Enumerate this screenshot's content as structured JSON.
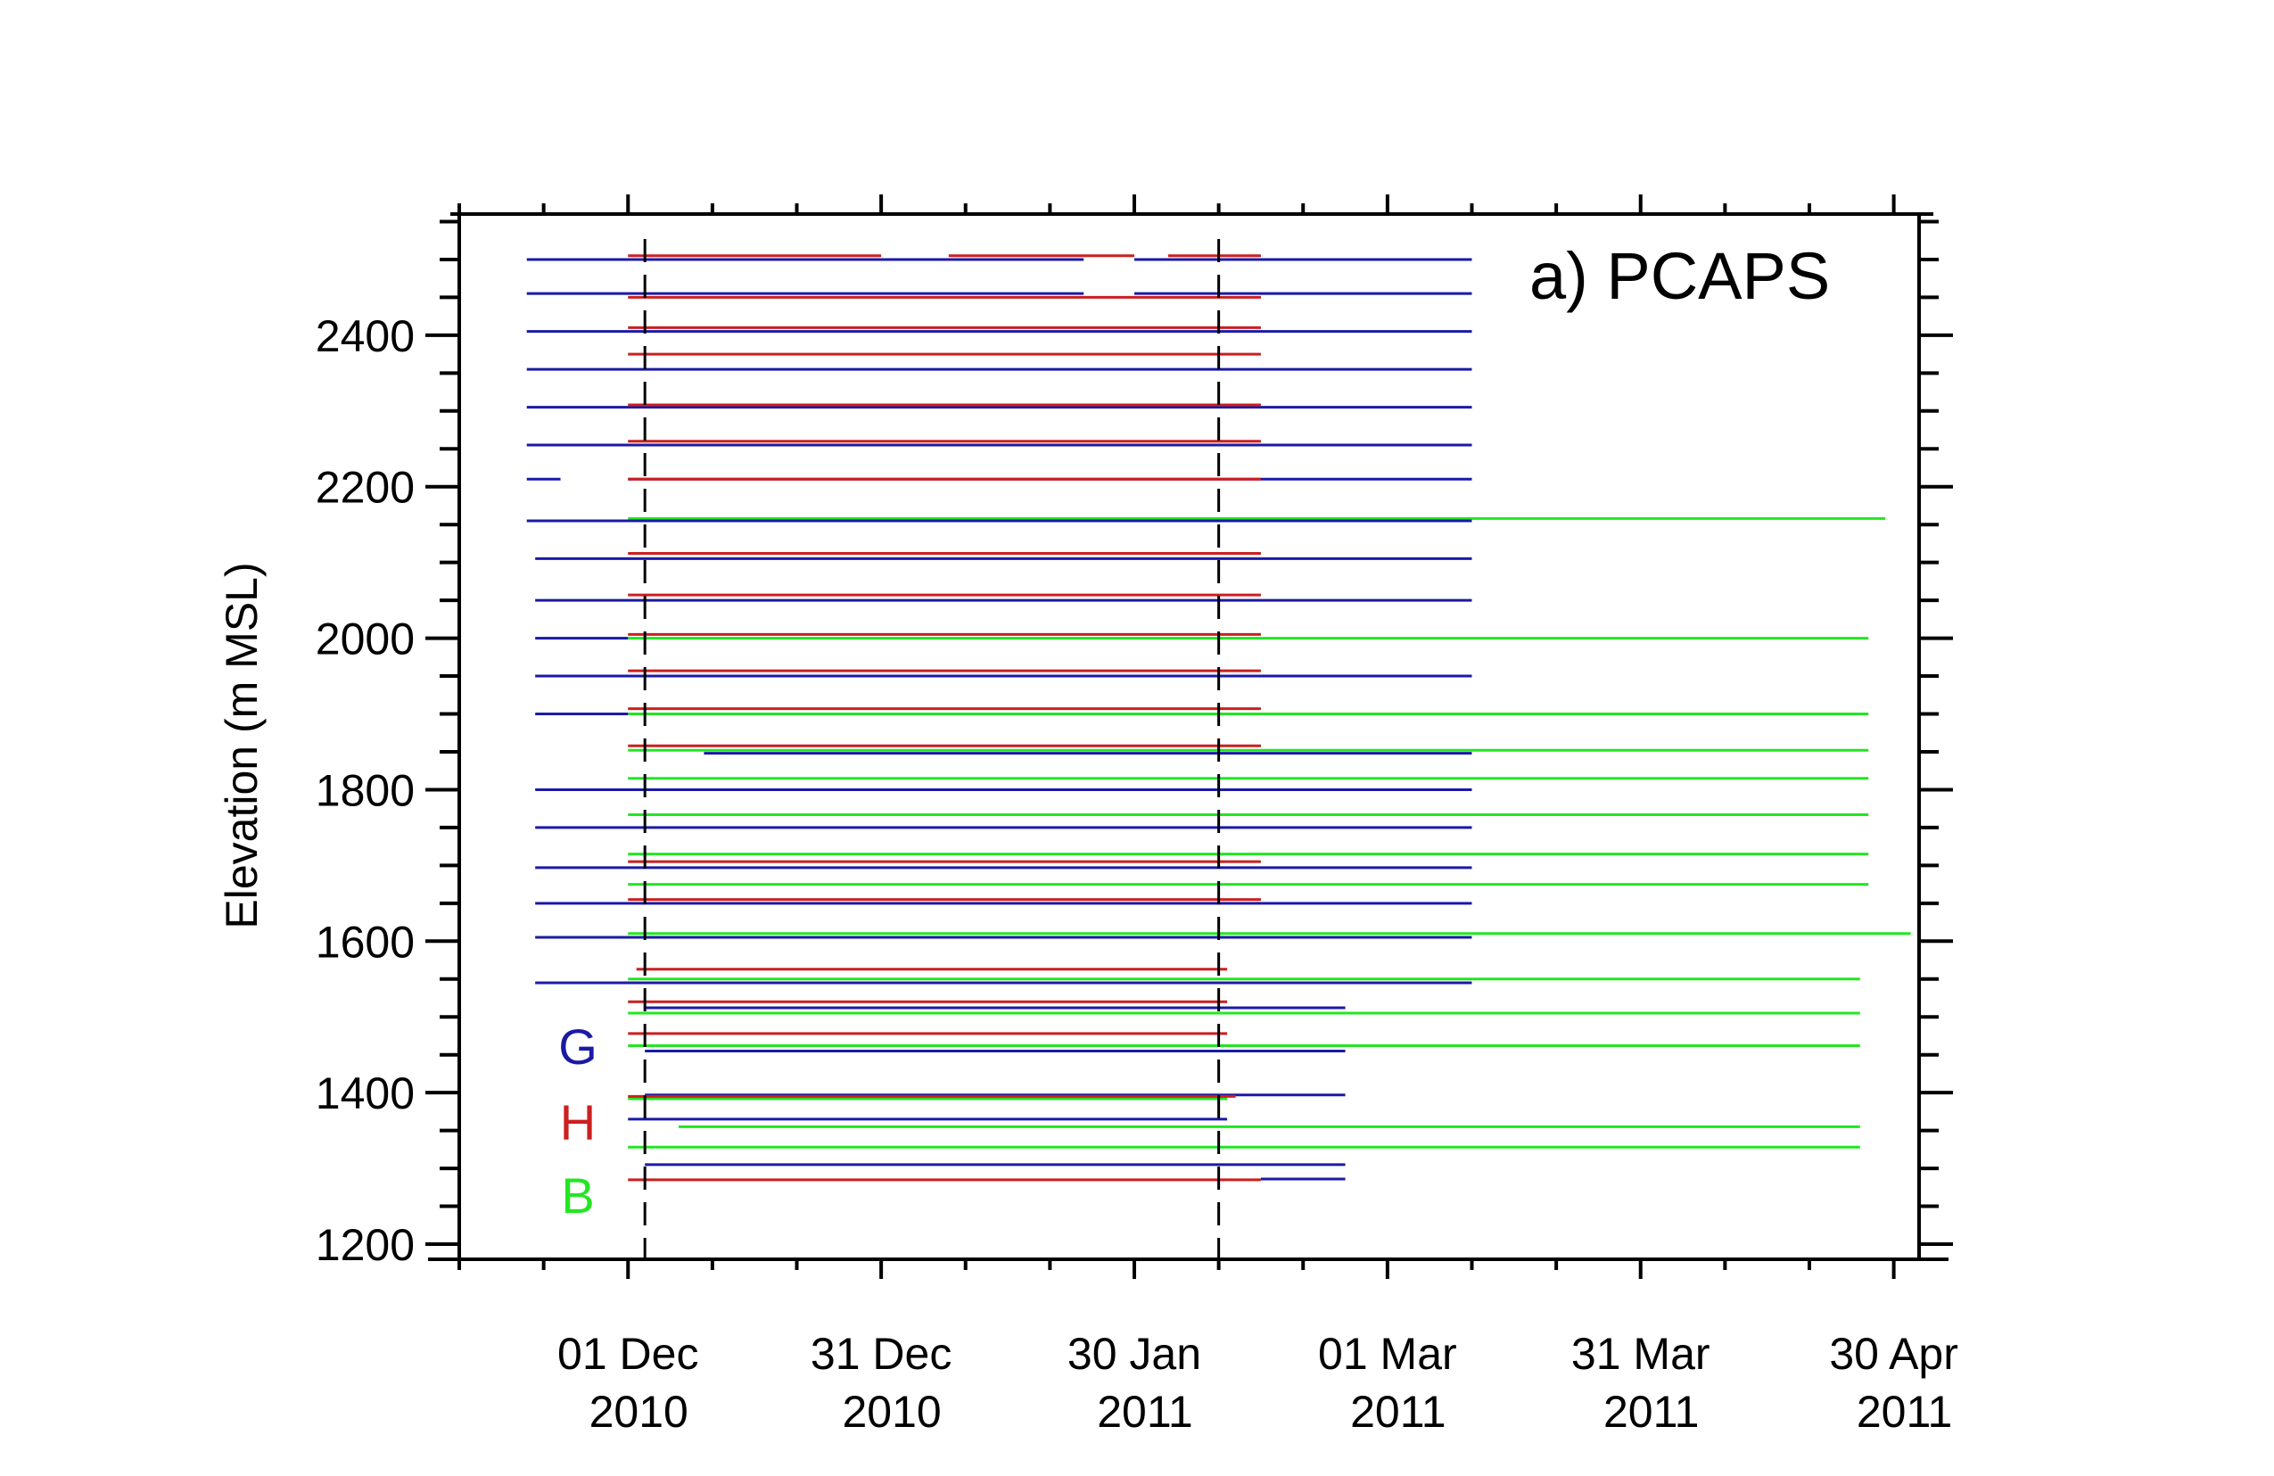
{
  "chart_data": {
    "type": "timeline",
    "title": "a) PCAPS",
    "xlabel": "",
    "ylabel": "Elevation (m MSL)",
    "ylim": [
      1180,
      2560
    ],
    "yticks": [
      1200,
      1400,
      1600,
      1800,
      2000,
      2200,
      2400
    ],
    "xlim": [
      "2010-11-11",
      "2011-05-03"
    ],
    "xticks": [
      {
        "date": "2010-12-01",
        "label1": "01 Dec",
        "label2": "2010"
      },
      {
        "date": "2010-12-31",
        "label1": "31 Dec",
        "label2": "2010"
      },
      {
        "date": "2011-01-30",
        "label1": "30 Jan",
        "label2": "2011"
      },
      {
        "date": "2011-03-01",
        "label1": "01 Mar",
        "label2": "2011"
      },
      {
        "date": "2011-03-31",
        "label1": "31 Mar",
        "label2": "2011"
      },
      {
        "date": "2011-04-30",
        "label1": "30 Apr",
        "label2": "2011"
      }
    ],
    "event_lines": [
      "2010-12-03",
      "2011-02-09"
    ],
    "colors": {
      "G": "#1a1aa6",
      "H": "#cc1f1f",
      "B": "#22e622"
    },
    "legend": [
      {
        "key": "G",
        "label": "G",
        "color": "#1a1aa6"
      },
      {
        "key": "H",
        "label": "H",
        "color": "#cc1f1f"
      },
      {
        "key": "B",
        "label": "B",
        "color": "#22e622"
      }
    ],
    "series": [
      {
        "name": "G",
        "segments": [
          {
            "y": 2500,
            "start": "2010-11-19",
            "end": "2011-01-24"
          },
          {
            "y": 2500,
            "start": "2011-01-30",
            "end": "2011-03-11"
          },
          {
            "y": 2455,
            "start": "2010-11-19",
            "end": "2011-01-24"
          },
          {
            "y": 2455,
            "start": "2011-01-30",
            "end": "2011-03-11"
          },
          {
            "y": 2405,
            "start": "2010-11-19",
            "end": "2011-03-11"
          },
          {
            "y": 2355,
            "start": "2010-11-19",
            "end": "2011-03-11"
          },
          {
            "y": 2305,
            "start": "2010-11-19",
            "end": "2011-03-11"
          },
          {
            "y": 2255,
            "start": "2010-11-19",
            "end": "2011-03-11"
          },
          {
            "y": 2210,
            "start": "2010-11-19",
            "end": "2010-11-23"
          },
          {
            "y": 2210,
            "start": "2010-12-01",
            "end": "2011-03-11"
          },
          {
            "y": 2155,
            "start": "2010-11-19",
            "end": "2011-03-11"
          },
          {
            "y": 2105,
            "start": "2010-11-20",
            "end": "2011-03-11"
          },
          {
            "y": 2050,
            "start": "2010-11-20",
            "end": "2011-03-11"
          },
          {
            "y": 2000,
            "start": "2010-11-20",
            "end": "2010-12-01"
          },
          {
            "y": 1950,
            "start": "2010-11-20",
            "end": "2011-03-11"
          },
          {
            "y": 1900,
            "start": "2010-11-20",
            "end": "2010-12-01"
          },
          {
            "y": 1848,
            "start": "2010-12-10",
            "end": "2011-03-11"
          },
          {
            "y": 1800,
            "start": "2010-11-20",
            "end": "2011-03-11"
          },
          {
            "y": 1750,
            "start": "2010-11-20",
            "end": "2011-03-11"
          },
          {
            "y": 1697,
            "start": "2010-11-20",
            "end": "2011-03-11"
          },
          {
            "y": 1650,
            "start": "2010-11-20",
            "end": "2011-03-11"
          },
          {
            "y": 1605,
            "start": "2010-11-20",
            "end": "2011-03-11"
          },
          {
            "y": 1545,
            "start": "2010-11-20",
            "end": "2011-03-11"
          },
          {
            "y": 1512,
            "start": "2010-12-03",
            "end": "2011-02-24"
          },
          {
            "y": 1455,
            "start": "2010-12-03",
            "end": "2011-02-24"
          },
          {
            "y": 1397,
            "start": "2010-12-03",
            "end": "2011-02-24"
          },
          {
            "y": 1365,
            "start": "2010-12-01",
            "end": "2011-02-10"
          },
          {
            "y": 1305,
            "start": "2010-12-03",
            "end": "2011-02-24"
          },
          {
            "y": 1286,
            "start": "2011-02-14",
            "end": "2011-02-24"
          }
        ]
      },
      {
        "name": "H",
        "segments": [
          {
            "y": 2505,
            "start": "2010-12-01",
            "end": "2010-12-31"
          },
          {
            "y": 2505,
            "start": "2011-01-08",
            "end": "2011-01-30"
          },
          {
            "y": 2505,
            "start": "2011-02-03",
            "end": "2011-02-14"
          },
          {
            "y": 2450,
            "start": "2010-12-01",
            "end": "2011-02-14"
          },
          {
            "y": 2410,
            "start": "2010-12-01",
            "end": "2011-02-14"
          },
          {
            "y": 2375,
            "start": "2010-12-01",
            "end": "2011-02-14"
          },
          {
            "y": 2308,
            "start": "2010-12-01",
            "end": "2011-02-14"
          },
          {
            "y": 2260,
            "start": "2010-12-01",
            "end": "2011-02-14"
          },
          {
            "y": 2210,
            "start": "2010-12-01",
            "end": "2011-02-14"
          },
          {
            "y": 2112,
            "start": "2010-12-01",
            "end": "2011-02-14"
          },
          {
            "y": 2057,
            "start": "2010-12-01",
            "end": "2011-02-14"
          },
          {
            "y": 2005,
            "start": "2010-12-01",
            "end": "2011-02-14"
          },
          {
            "y": 1957,
            "start": "2010-12-01",
            "end": "2011-02-14"
          },
          {
            "y": 1907,
            "start": "2010-12-01",
            "end": "2011-02-14"
          },
          {
            "y": 1858,
            "start": "2010-12-01",
            "end": "2011-02-14"
          },
          {
            "y": 1705,
            "start": "2010-12-01",
            "end": "2011-02-14"
          },
          {
            "y": 1655,
            "start": "2010-12-01",
            "end": "2011-02-14"
          },
          {
            "y": 1563,
            "start": "2010-12-02",
            "end": "2011-02-10"
          },
          {
            "y": 1520,
            "start": "2010-12-01",
            "end": "2011-02-10"
          },
          {
            "y": 1478,
            "start": "2010-12-01",
            "end": "2011-02-10"
          },
          {
            "y": 1395,
            "start": "2010-12-01",
            "end": "2011-02-11"
          },
          {
            "y": 1285,
            "start": "2010-12-01",
            "end": "2011-02-14"
          }
        ]
      },
      {
        "name": "B",
        "segments": [
          {
            "y": 2158,
            "start": "2010-12-01",
            "end": "2011-04-29"
          },
          {
            "y": 2000,
            "start": "2010-12-01",
            "end": "2011-04-27"
          },
          {
            "y": 1900,
            "start": "2010-12-01",
            "end": "2011-04-27"
          },
          {
            "y": 1852,
            "start": "2010-12-01",
            "end": "2011-04-27"
          },
          {
            "y": 1815,
            "start": "2010-12-01",
            "end": "2011-04-27"
          },
          {
            "y": 1767,
            "start": "2010-12-01",
            "end": "2011-04-27"
          },
          {
            "y": 1715,
            "start": "2010-12-01",
            "end": "2011-04-27"
          },
          {
            "y": 1675,
            "start": "2010-12-01",
            "end": "2011-04-27"
          },
          {
            "y": 1610,
            "start": "2010-12-01",
            "end": "2011-05-02"
          },
          {
            "y": 1550,
            "start": "2010-12-01",
            "end": "2011-04-26"
          },
          {
            "y": 1505,
            "start": "2010-12-01",
            "end": "2011-04-26"
          },
          {
            "y": 1462,
            "start": "2010-12-01",
            "end": "2011-04-26"
          },
          {
            "y": 1392,
            "start": "2010-12-01",
            "end": "2011-02-10"
          },
          {
            "y": 1355,
            "start": "2010-12-07",
            "end": "2011-04-26"
          },
          {
            "y": 1328,
            "start": "2010-12-01",
            "end": "2011-04-26"
          }
        ]
      }
    ]
  }
}
